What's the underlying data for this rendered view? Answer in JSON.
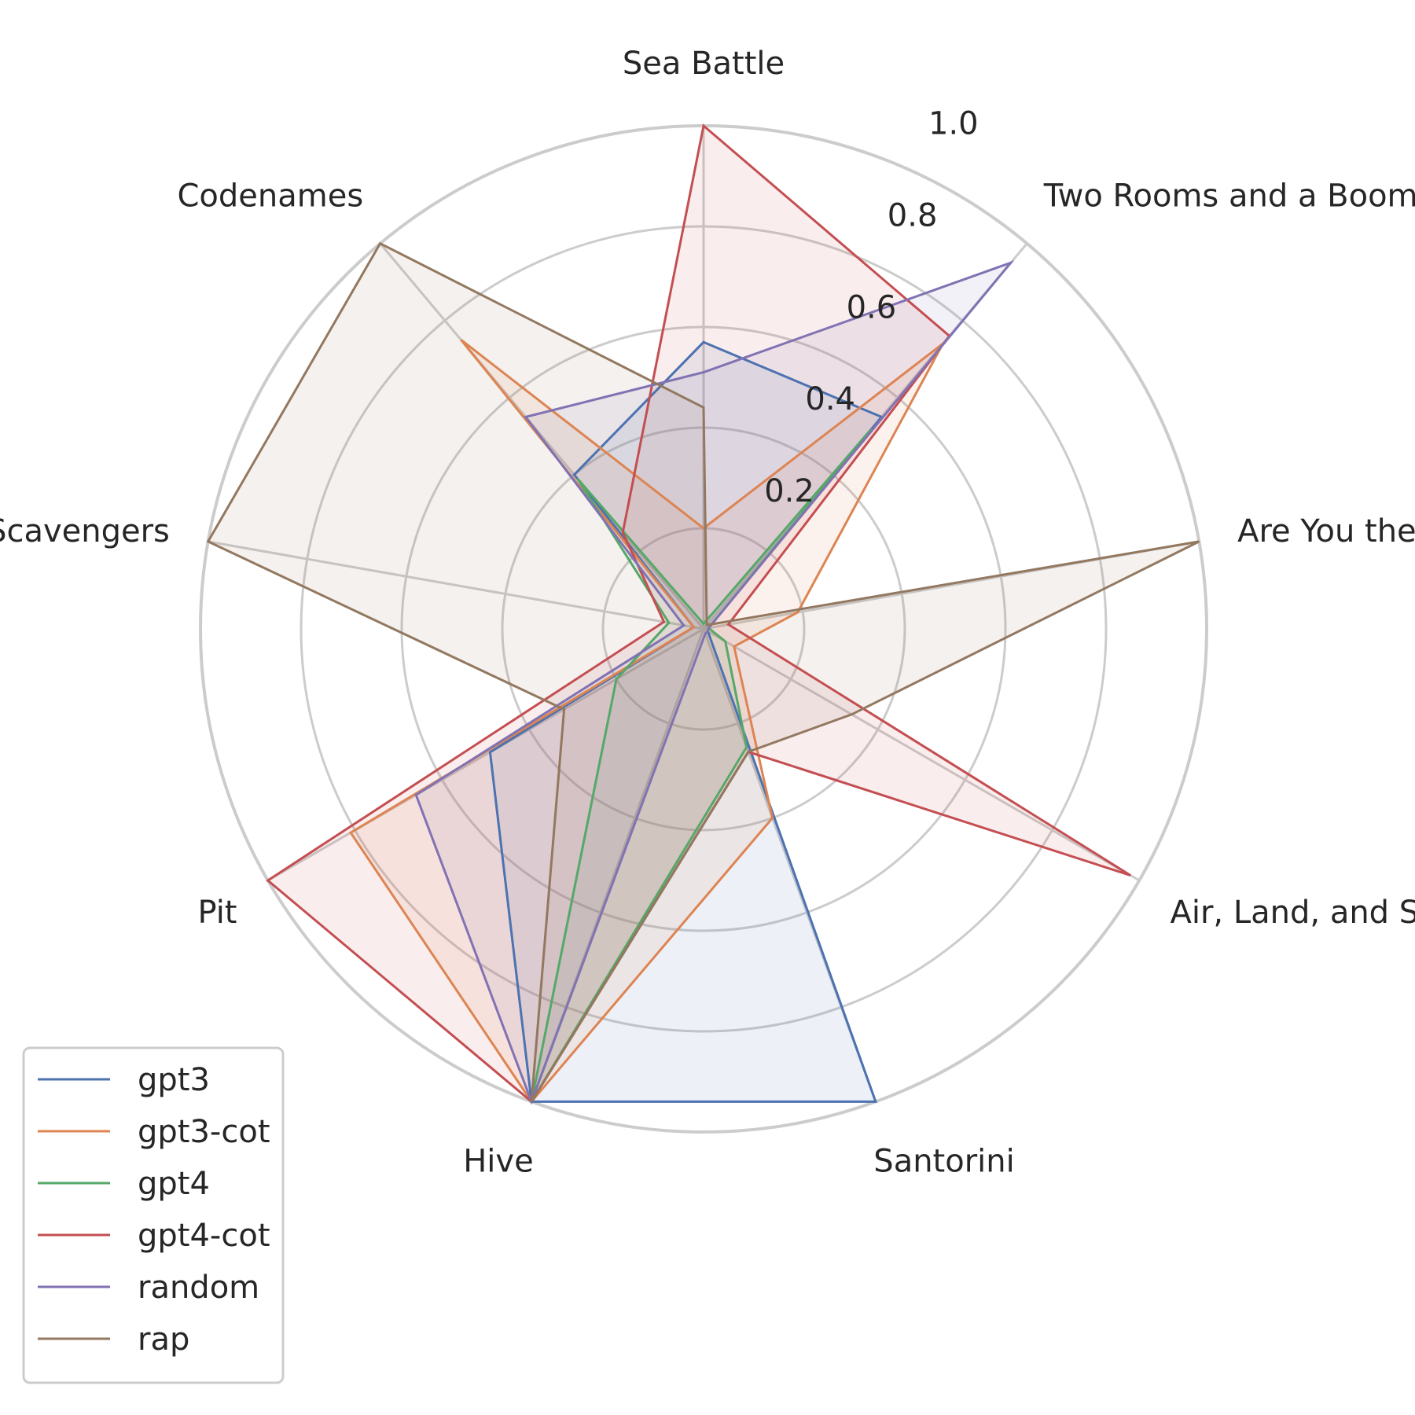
{
  "chart_data": {
    "type": "radar",
    "title": "",
    "categories": [
      "Sea Battle",
      "Two Rooms and a Boom",
      "Are You the Traitor?",
      "Air, Land, and Sea",
      "Santorini",
      "Hive",
      "Pit",
      "Arctic Scavengers",
      "Codenames"
    ],
    "radial_ticks": [
      "0.2",
      "0.4",
      "0.6",
      "0.8",
      "1.0"
    ],
    "rlim": [
      0,
      1.0
    ],
    "grid": true,
    "legend_position": "lower-left",
    "series": [
      {
        "name": "gpt3",
        "color": "#4c72b0",
        "values": [
          0.57,
          0.55,
          0.01,
          0.01,
          1.0,
          1.0,
          0.49,
          0.02,
          0.4
        ]
      },
      {
        "name": "gpt3-cot",
        "color": "#dd8452",
        "values": [
          0.2,
          0.74,
          0.19,
          0.07,
          0.4,
          1.0,
          0.81,
          0.02,
          0.75
        ]
      },
      {
        "name": "gpt4",
        "color": "#55a868",
        "values": [
          0.01,
          0.52,
          0.01,
          0.05,
          0.25,
          1.0,
          0.2,
          0.07,
          0.39
        ]
      },
      {
        "name": "gpt4-cot",
        "color": "#c44e52",
        "values": [
          1.0,
          0.76,
          0.05,
          0.98,
          0.26,
          1.0,
          1.0,
          0.08,
          0.25
        ]
      },
      {
        "name": "random",
        "color": "#8172b3",
        "values": [
          0.51,
          0.95,
          0.01,
          0.01,
          0.01,
          1.0,
          0.66,
          0.04,
          0.55
        ]
      },
      {
        "name": "rap",
        "color": "#937860",
        "values": [
          0.44,
          0.01,
          1.0,
          0.34,
          0.26,
          1.0,
          0.32,
          1.0,
          1.0
        ]
      }
    ]
  }
}
